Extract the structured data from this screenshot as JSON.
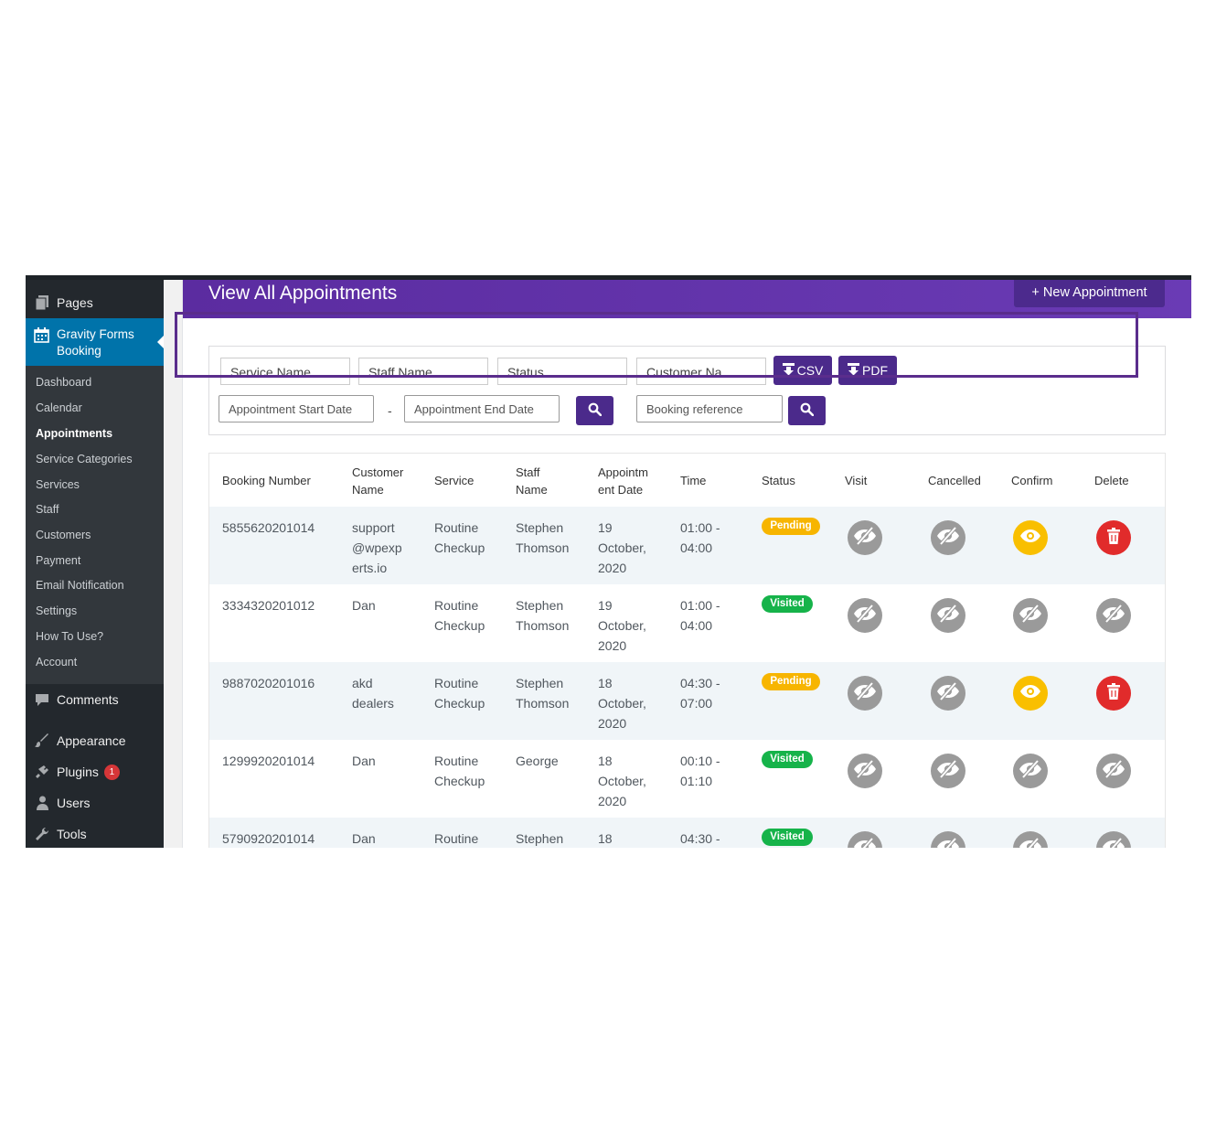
{
  "sidebar": {
    "pages_label": "Pages",
    "active_label": "Gravity Forms Booking",
    "submenu": [
      "Dashboard",
      "Calendar",
      "Appointments",
      "Service Categories",
      "Services",
      "Staff",
      "Customers",
      "Payment",
      "Email Notification",
      "Settings",
      "How To Use?",
      "Account"
    ],
    "current_submenu": "Appointments",
    "comments_label": "Comments",
    "appearance_label": "Appearance",
    "plugins_label": "Plugins",
    "plugins_badge": "1",
    "users_label": "Users",
    "tools_label": "Tools"
  },
  "header": {
    "title": "View All Appointments",
    "new_button": "+ New Appointment"
  },
  "filters": {
    "service_name": "Service Name",
    "staff_name": "Staff Name",
    "status": "Status",
    "customer_name": "Customer Na...",
    "csv_label": "CSV",
    "pdf_label": "PDF",
    "start_date_placeholder": "Appointment Start Date",
    "separator": "-",
    "end_date_placeholder": "Appointment End Date",
    "booking_ref_placeholder": "Booking reference"
  },
  "table": {
    "headers": {
      "booking_number": "Booking Number",
      "customer_name": "Customer Name",
      "service": "Service",
      "staff_name": "Staff Name",
      "appointment_date": "Appointm ent Date",
      "time": "Time",
      "status": "Status",
      "visit": "Visit",
      "cancelled": "Cancelled",
      "confirm": "Confirm",
      "delete": "Delete"
    },
    "rows": [
      {
        "booking": "5855620201014",
        "customer": "support @wpexp erts.io",
        "service": "Routine Checkup",
        "staff": "Stephen Thomson",
        "date": "19 October, 2020",
        "time": "01:00 - 04:00",
        "status": "Pending"
      },
      {
        "booking": "3334320201012",
        "customer": "Dan",
        "service": "Routine Checkup",
        "staff": "Stephen Thomson",
        "date": "19 October, 2020",
        "time": "01:00 - 04:00",
        "status": "Visited"
      },
      {
        "booking": "9887020201016",
        "customer": "akd dealers",
        "service": "Routine Checkup",
        "staff": "Stephen Thomson",
        "date": "18 October, 2020",
        "time": "04:30 - 07:00",
        "status": "Pending"
      },
      {
        "booking": "1299920201014",
        "customer": "Dan",
        "service": "Routine Checkup",
        "staff": "George",
        "date": "18 October, 2020",
        "time": "00:10 - 01:10",
        "status": "Visited"
      },
      {
        "booking": "5790920201014",
        "customer": "Dan",
        "service": "Routine",
        "staff": "Stephen",
        "date": "18",
        "time": "04:30 -",
        "status": "Visited"
      }
    ]
  },
  "colors": {
    "accent": "#5b2ca0",
    "pending": "#f7b500",
    "visited": "#16b34a",
    "confirm": "#f9bf00",
    "delete": "#e12b2b",
    "disabled": "#9a9a9a",
    "wp_active": "#0073aa"
  }
}
